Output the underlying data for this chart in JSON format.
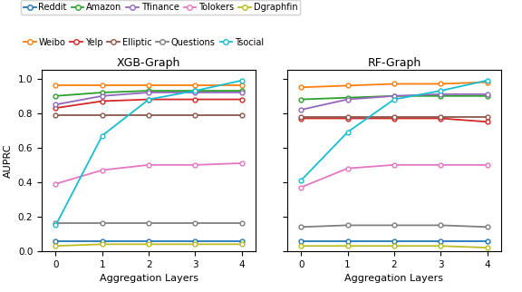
{
  "x": [
    0,
    1,
    2,
    3,
    4
  ],
  "datasets_xgb": {
    "Reddit": [
      0.06,
      0.06,
      0.06,
      0.06,
      0.06
    ],
    "Weibo": [
      0.96,
      0.96,
      0.96,
      0.96,
      0.96
    ],
    "Amazon": [
      0.9,
      0.92,
      0.93,
      0.93,
      0.93
    ],
    "Yelp": [
      0.83,
      0.87,
      0.88,
      0.88,
      0.88
    ],
    "Tfinance": [
      0.85,
      0.9,
      0.92,
      0.92,
      0.92
    ],
    "Elliptic": [
      0.79,
      0.79,
      0.79,
      0.79,
      0.79
    ],
    "Tolokers": [
      0.39,
      0.47,
      0.5,
      0.5,
      0.51
    ],
    "Questions": [
      0.16,
      0.16,
      0.16,
      0.16,
      0.16
    ],
    "Dgraphfin": [
      0.03,
      0.04,
      0.04,
      0.04,
      0.04
    ],
    "Tsocial": [
      0.15,
      0.67,
      0.88,
      0.93,
      0.99
    ]
  },
  "datasets_rf": {
    "Reddit": [
      0.06,
      0.06,
      0.06,
      0.06,
      0.06
    ],
    "Weibo": [
      0.95,
      0.96,
      0.97,
      0.97,
      0.98
    ],
    "Amazon": [
      0.88,
      0.89,
      0.9,
      0.9,
      0.9
    ],
    "Yelp": [
      0.77,
      0.77,
      0.77,
      0.77,
      0.75
    ],
    "Tfinance": [
      0.82,
      0.88,
      0.9,
      0.91,
      0.91
    ],
    "Elliptic": [
      0.78,
      0.78,
      0.78,
      0.78,
      0.78
    ],
    "Tolokers": [
      0.37,
      0.48,
      0.5,
      0.5,
      0.5
    ],
    "Questions": [
      0.14,
      0.15,
      0.15,
      0.15,
      0.14
    ],
    "Dgraphfin": [
      0.03,
      0.03,
      0.03,
      0.03,
      0.02
    ],
    "Tsocial": [
      0.41,
      0.69,
      0.88,
      0.93,
      0.99
    ]
  },
  "colors": {
    "Reddit": "#1f77b4",
    "Weibo": "#ff7f0e",
    "Amazon": "#2ca02c",
    "Yelp": "#d62728",
    "Tfinance": "#9467bd",
    "Elliptic": "#8c564b",
    "Tolokers": "#e377c2",
    "Questions": "#7f7f7f",
    "Dgraphfin": "#bcbd22",
    "Tsocial": "#17becf"
  },
  "title_xgb": "XGB-Graph",
  "title_rf": "RF-Graph",
  "xlabel": "Aggregation Layers",
  "ylabel": "AUPRC",
  "ylim": [
    0.0,
    1.05
  ],
  "yticks": [
    0.0,
    0.2,
    0.4,
    0.6,
    0.8,
    1.0
  ],
  "legend_row1": [
    "Reddit",
    "Amazon",
    "Tfinance",
    "Tolokers",
    "Dgraphfin"
  ],
  "legend_row2": [
    "Weibo",
    "Yelp",
    "Elliptic",
    "Questions",
    "Tsocial"
  ]
}
